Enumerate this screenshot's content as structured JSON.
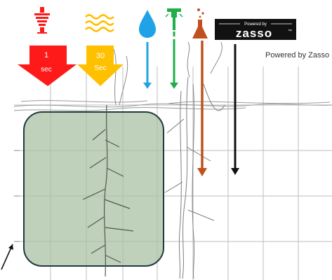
{
  "arrows": {
    "red": {
      "label_line1": "1",
      "label_line2": "sec",
      "color": "#ff1a1a",
      "icon": "electric-heat-coil-icon"
    },
    "yellow": {
      "label_line1": "30",
      "label_line2": "Sec",
      "color": "#ffc000",
      "icon": "heat-waves-icon"
    }
  },
  "icons": {
    "water": {
      "name": "water-drop-icon",
      "color": "#1fa3e6"
    },
    "sprayer": {
      "name": "spray-nozzle-icon",
      "color": "#1fae4a"
    },
    "chemical": {
      "name": "chemical-flask-icon",
      "color": "#c0501e"
    }
  },
  "depth_arrows": {
    "water_color": "#1fa3e6",
    "sprayer_color": "#1fae4a",
    "chemical_color": "#c0501e",
    "zasso_color": "#111111"
  },
  "logo": {
    "powered_by": "Powered by",
    "brand": "zasso",
    "trademark": "™",
    "caption": "Powered by Zasso"
  },
  "root_zone": {
    "fill": "#a9c2a3",
    "border": "#1e3a3f"
  },
  "grid": {
    "line_color": "#bdbdbd"
  }
}
